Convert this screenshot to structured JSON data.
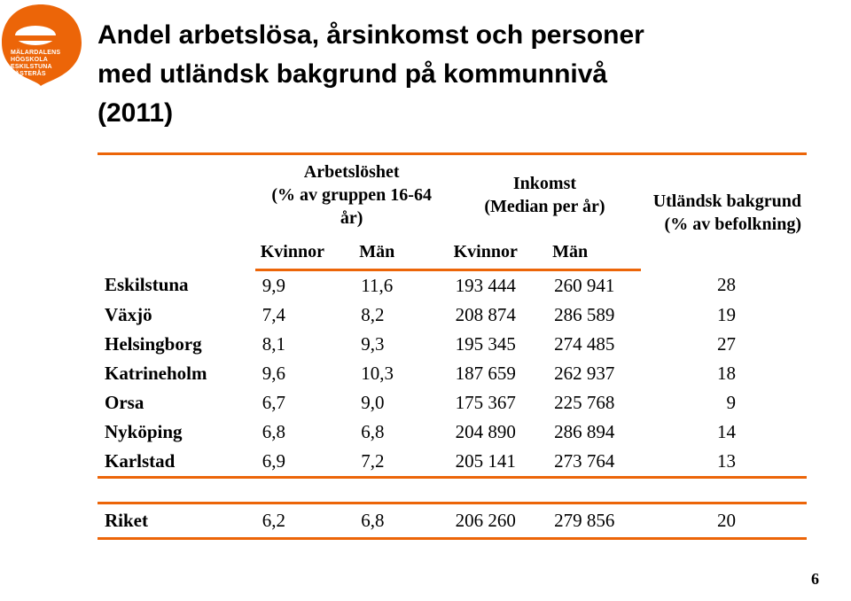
{
  "title_lines": [
    "Andel arbetslösa, årsinkomst och personer",
    "med utländsk bakgrund på kommunnivå",
    "(2011)"
  ],
  "logo": {
    "fill": "#ec6508",
    "lines": [
      "MÄLARDALENS HÖGSKOLA",
      "ESKILSTUNA VÄSTERÅS"
    ]
  },
  "accent_color": "#ec6508",
  "table": {
    "headers": {
      "empty": "",
      "col1_top": "Arbetslöshet",
      "col1_mid": "(% av gruppen 16-64",
      "col1_bot": "år)",
      "col2_top": "Inkomst",
      "col2_bot": "(Median per år)",
      "col3_top": "Utländsk bakgrund",
      "col3_bot": "(% av befolkning)",
      "sub_kvinnor": "Kvinnor",
      "sub_man": "Män"
    },
    "rows": [
      {
        "city": "Eskilstuna",
        "v": [
          "9,9",
          "11,6",
          "193 444",
          "260 941",
          "28"
        ]
      },
      {
        "city": "Växjö",
        "v": [
          "7,4",
          "8,2",
          "208 874",
          "286 589",
          "19"
        ]
      },
      {
        "city": "Helsingborg",
        "v": [
          "8,1",
          "9,3",
          "195 345",
          "274 485",
          "27"
        ]
      },
      {
        "city": "Katrineholm",
        "v": [
          "9,6",
          "10,3",
          "187 659",
          "262 937",
          "18"
        ]
      },
      {
        "city": "Orsa",
        "v": [
          "6,7",
          "9,0",
          "175 367",
          "225 768",
          "9"
        ]
      },
      {
        "city": "Nyköping",
        "v": [
          "6,8",
          "6,8",
          "204 890",
          "286 894",
          "14"
        ]
      },
      {
        "city": "Karlstad",
        "v": [
          "6,9",
          "7,2",
          "205 141",
          "273 764",
          "13"
        ]
      }
    ],
    "summary": {
      "city": "Riket",
      "v": [
        "6,2",
        "6,8",
        "206 260",
        "279 856",
        "20"
      ]
    }
  },
  "page_number": "6"
}
